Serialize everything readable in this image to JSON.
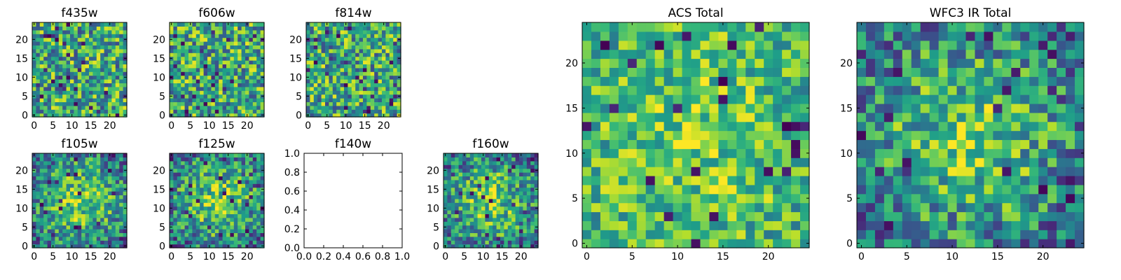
{
  "chart_data": [
    {
      "type": "heatmap",
      "title": "f435w",
      "xlim": [
        -0.5,
        24.5
      ],
      "ylim": [
        -0.5,
        24.5
      ],
      "xticks": [
        0,
        5,
        10,
        15,
        20
      ],
      "yticks": [
        0,
        5,
        10,
        15,
        20
      ],
      "grid_size": 25,
      "colormap": "viridis",
      "seed": 11,
      "style": "noise"
    },
    {
      "type": "heatmap",
      "title": "f606w",
      "xlim": [
        -0.5,
        24.5
      ],
      "ylim": [
        -0.5,
        24.5
      ],
      "xticks": [
        0,
        5,
        10,
        15,
        20
      ],
      "yticks": [
        0,
        5,
        10,
        15,
        20
      ],
      "grid_size": 25,
      "colormap": "viridis",
      "seed": 23,
      "style": "noise"
    },
    {
      "type": "heatmap",
      "title": "f814w",
      "xlim": [
        -0.5,
        24.5
      ],
      "ylim": [
        -0.5,
        24.5
      ],
      "xticks": [
        0,
        5,
        10,
        15,
        20
      ],
      "yticks": [
        0,
        5,
        10,
        15,
        20
      ],
      "grid_size": 25,
      "colormap": "viridis",
      "seed": 37,
      "style": "noise"
    },
    {
      "type": "heatmap",
      "title": "f105w",
      "xlim": [
        -0.5,
        24.5
      ],
      "ylim": [
        -0.5,
        24.5
      ],
      "xticks": [
        0,
        5,
        10,
        15,
        20
      ],
      "yticks": [
        0,
        5,
        10,
        15,
        20
      ],
      "grid_size": 25,
      "colormap": "viridis",
      "seed": 41,
      "style": "blob"
    },
    {
      "type": "heatmap",
      "title": "f125w",
      "xlim": [
        -0.5,
        24.5
      ],
      "ylim": [
        -0.5,
        24.5
      ],
      "xticks": [
        0,
        5,
        10,
        15,
        20
      ],
      "yticks": [
        0,
        5,
        10,
        15,
        20
      ],
      "grid_size": 25,
      "colormap": "viridis",
      "seed": 53,
      "style": "blob"
    },
    {
      "type": "empty",
      "title": "f140w",
      "xlim": [
        0,
        1
      ],
      "ylim": [
        0,
        1
      ],
      "xticks": [
        "0.0",
        "0.2",
        "0.4",
        "0.6",
        "0.8",
        "1.0"
      ],
      "yticks": [
        "0.0",
        "0.2",
        "0.4",
        "0.6",
        "0.8",
        "1.0"
      ]
    },
    {
      "type": "heatmap",
      "title": "f160w",
      "xlim": [
        -0.5,
        24.5
      ],
      "ylim": [
        -0.5,
        24.5
      ],
      "xticks": [
        0,
        5,
        10,
        15,
        20
      ],
      "yticks": [
        0,
        5,
        10,
        15,
        20
      ],
      "grid_size": 25,
      "colormap": "viridis",
      "seed": 67,
      "style": "blob"
    },
    {
      "type": "heatmap",
      "title": "ACS Total",
      "xlim": [
        -0.5,
        24.5
      ],
      "ylim": [
        -0.5,
        24.5
      ],
      "xticks": [
        0,
        5,
        10,
        15,
        20
      ],
      "yticks": [
        0,
        5,
        10,
        15,
        20
      ],
      "grid_size": 25,
      "colormap": "viridis",
      "seed": 71,
      "style": "bright"
    },
    {
      "type": "heatmap",
      "title": "WFC3 IR Total",
      "xlim": [
        -0.5,
        24.5
      ],
      "ylim": [
        -0.5,
        24.5
      ],
      "xticks": [
        0,
        5,
        10,
        15,
        20
      ],
      "yticks": [
        0,
        5,
        10,
        15,
        20
      ],
      "grid_size": 25,
      "colormap": "viridis",
      "seed": 89,
      "style": "blob"
    }
  ]
}
